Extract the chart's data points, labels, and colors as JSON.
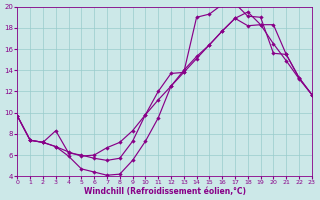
{
  "xlabel": "Windchill (Refroidissement éolien,°C)",
  "xlim": [
    0,
    23
  ],
  "ylim": [
    4,
    20
  ],
  "xticks": [
    0,
    1,
    2,
    3,
    4,
    5,
    6,
    7,
    8,
    9,
    10,
    11,
    12,
    13,
    14,
    15,
    16,
    17,
    18,
    19,
    20,
    21,
    22,
    23
  ],
  "yticks": [
    4,
    6,
    8,
    10,
    12,
    14,
    16,
    18,
    20
  ],
  "bg_color": "#cce8e8",
  "line_color": "#880088",
  "grid_color": "#99cccc",
  "line1_x": [
    0,
    1,
    2,
    3,
    4,
    5,
    6,
    7,
    8,
    9,
    10,
    11,
    12,
    13,
    14,
    15,
    16,
    17,
    18,
    19,
    20,
    21,
    22,
    23
  ],
  "line1_y": [
    9.7,
    7.4,
    7.2,
    6.8,
    6.3,
    5.9,
    6.0,
    6.7,
    7.2,
    8.3,
    9.8,
    11.2,
    12.5,
    13.8,
    15.1,
    16.4,
    17.7,
    18.9,
    19.5,
    18.3,
    16.5,
    14.9,
    13.2,
    11.7
  ],
  "line2_x": [
    0,
    1,
    2,
    3,
    4,
    5,
    6,
    7,
    8,
    9,
    10,
    11,
    12,
    13,
    14,
    15,
    16,
    17,
    18,
    19,
    20,
    21,
    22,
    23
  ],
  "line2_y": [
    9.7,
    7.4,
    7.2,
    8.3,
    6.2,
    6.0,
    5.7,
    5.5,
    5.7,
    7.3,
    9.8,
    12.0,
    13.7,
    13.8,
    19.0,
    19.3,
    20.2,
    20.3,
    19.1,
    19.0,
    15.6,
    15.5,
    13.3,
    11.7
  ],
  "line3_x": [
    0,
    1,
    2,
    3,
    4,
    5,
    6,
    7,
    8,
    9,
    10,
    11,
    12,
    13,
    14,
    15,
    16,
    17,
    18,
    19,
    20,
    21,
    22,
    23
  ],
  "line3_y": [
    9.7,
    7.4,
    7.2,
    6.8,
    5.9,
    4.7,
    4.4,
    4.1,
    4.2,
    5.5,
    7.3,
    9.5,
    12.5,
    14.0,
    15.3,
    16.4,
    17.7,
    18.9,
    18.2,
    18.3,
    18.3,
    15.5,
    13.3,
    11.7
  ]
}
